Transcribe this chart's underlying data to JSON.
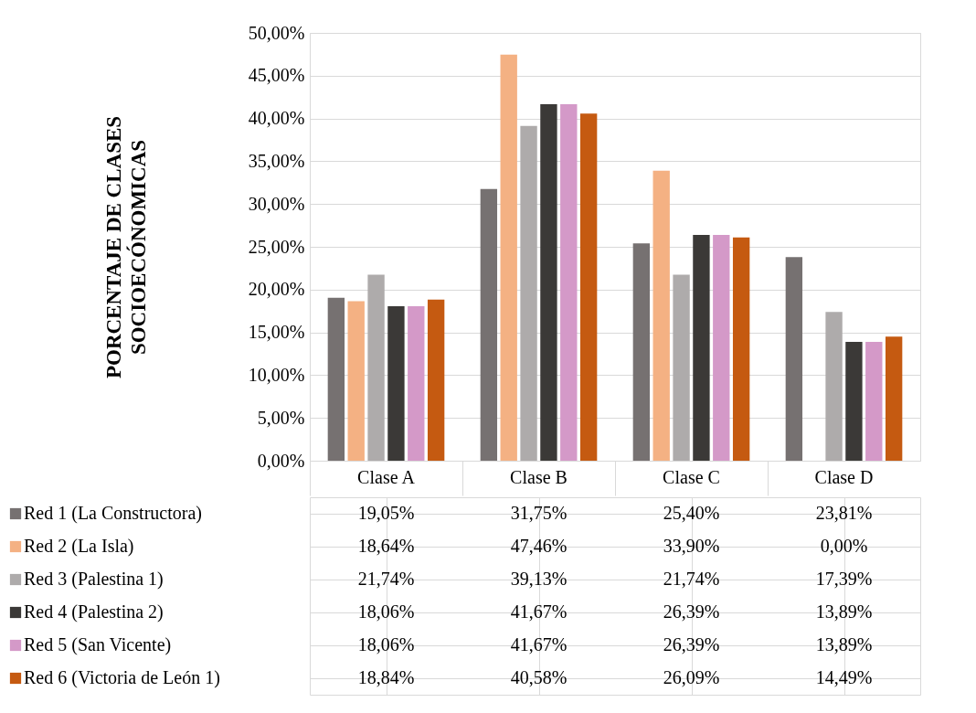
{
  "chart_data": {
    "type": "bar",
    "ylabel": "PORCENTAJE DE CLASES\nSOCIOECÓNOMICAS",
    "categories": [
      "Clase A",
      "Clase B",
      "Clase C",
      "Clase D"
    ],
    "series": [
      {
        "name": "Red 1 (La Constructora)",
        "color": "#767171",
        "values": [
          19.05,
          31.75,
          25.4,
          23.81
        ],
        "value_labels": [
          "19,05%",
          "31,75%",
          "25,40%",
          "23,81%"
        ]
      },
      {
        "name": "Red 2 (La Isla)",
        "color": "#f4b183",
        "values": [
          18.64,
          47.46,
          33.9,
          0.0
        ],
        "value_labels": [
          "18,64%",
          "47,46%",
          "33,90%",
          "0,00%"
        ]
      },
      {
        "name": "Red 3 (Palestina 1)",
        "color": "#aeabab",
        "values": [
          21.74,
          39.13,
          21.74,
          17.39
        ],
        "value_labels": [
          "21,74%",
          "39,13%",
          "21,74%",
          "17,39%"
        ]
      },
      {
        "name": "Red 4 (Palestina 2)",
        "color": "#3b3937",
        "values": [
          18.06,
          41.67,
          26.39,
          13.89
        ],
        "value_labels": [
          "18,06%",
          "41,67%",
          "26,39%",
          "13,89%"
        ]
      },
      {
        "name": "Red 5 (San Vicente)",
        "color": "#d499c8",
        "values": [
          18.06,
          41.67,
          26.39,
          13.89
        ],
        "value_labels": [
          "18,06%",
          "41,67%",
          "26,39%",
          "13,89%"
        ]
      },
      {
        "name": "Red 6 (Victoria de León 1)",
        "color": "#c55a11",
        "values": [
          18.84,
          40.58,
          26.09,
          14.49
        ],
        "value_labels": [
          "18,84%",
          "40,58%",
          "26,09%",
          "14,49%"
        ]
      }
    ],
    "ylim": [
      0,
      50
    ],
    "yticks": [
      {
        "value": 0,
        "label": "0,00%"
      },
      {
        "value": 5,
        "label": "5,00%"
      },
      {
        "value": 10,
        "label": "10,00%"
      },
      {
        "value": 15,
        "label": "15,00%"
      },
      {
        "value": 20,
        "label": "20,00%"
      },
      {
        "value": 25,
        "label": "25,00%"
      },
      {
        "value": 30,
        "label": "30,00%"
      },
      {
        "value": 35,
        "label": "35,00%"
      },
      {
        "value": 40,
        "label": "40,00%"
      },
      {
        "value": 45,
        "label": "45,00%"
      },
      {
        "value": 50,
        "label": "50,00%"
      }
    ],
    "grid": "y",
    "legend": "bottom"
  }
}
